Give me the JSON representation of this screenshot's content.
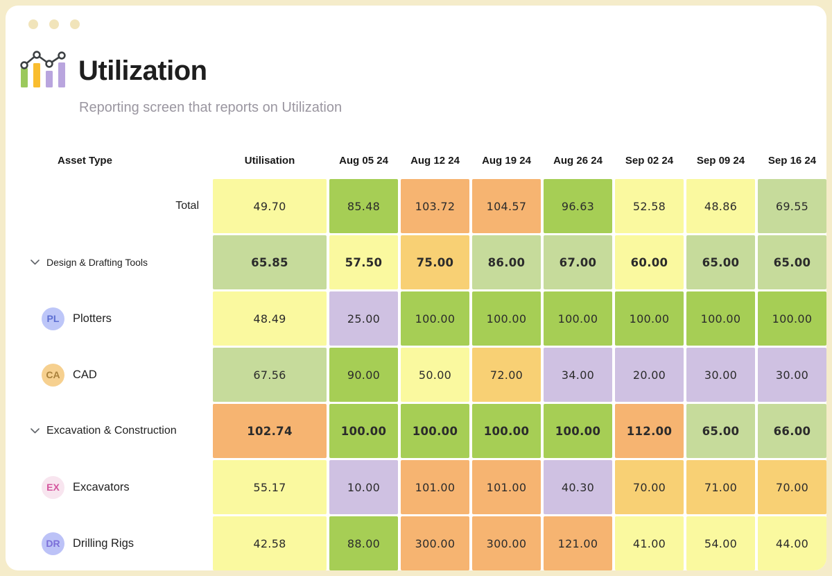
{
  "header": {
    "title": "Utilization",
    "subtitle": "Reporting screen that reports on Utilization"
  },
  "table": {
    "asset_type_header": "Asset Type",
    "columns": [
      "Utilisation",
      "Aug 05 24",
      "Aug 12 24",
      "Aug 19 24",
      "Aug 26 24",
      "Sep 02 24",
      "Sep 09 24",
      "Sep 16 24"
    ],
    "rows": [
      {
        "label": "Total",
        "type": "total",
        "values": [
          "49.70",
          "85.48",
          "103.72",
          "104.57",
          "96.63",
          "52.58",
          "48.86",
          "69.55"
        ],
        "cell_colors": [
          "paleYellow",
          "green",
          "orange",
          "orange",
          "green",
          "paleYellow",
          "paleYellow",
          "lightGreen"
        ]
      },
      {
        "label": "Design & Drafting Tools",
        "type": "group",
        "label_size": "sm",
        "values": [
          "65.85",
          "57.50",
          "75.00",
          "86.00",
          "67.00",
          "60.00",
          "65.00",
          "65.00"
        ],
        "cell_colors": [
          "lightGreen",
          "paleYellow",
          "gold",
          "lightGreen",
          "lightGreen",
          "paleYellow",
          "lightGreen",
          "lightGreen"
        ]
      },
      {
        "label": "Plotters",
        "type": "child",
        "avatar": "PL",
        "avatar_bg": "#bdc6f8",
        "avatar_fg": "#5d6fd2",
        "values": [
          "48.49",
          "25.00",
          "100.00",
          "100.00",
          "100.00",
          "100.00",
          "100.00",
          "100.00"
        ],
        "cell_colors": [
          "paleYellow",
          "purple",
          "green",
          "green",
          "green",
          "green",
          "green",
          "green"
        ]
      },
      {
        "label": "CAD",
        "type": "child",
        "avatar": "CA",
        "avatar_bg": "#f6d08f",
        "avatar_fg": "#a9813c",
        "values": [
          "67.56",
          "90.00",
          "50.00",
          "72.00",
          "34.00",
          "20.00",
          "30.00",
          "30.00"
        ],
        "cell_colors": [
          "lightGreen",
          "green",
          "paleYellow",
          "gold",
          "purple",
          "purple",
          "purple",
          "purple"
        ]
      },
      {
        "label": "Excavation & Construction",
        "type": "group",
        "label_size": "md",
        "values": [
          "102.74",
          "100.00",
          "100.00",
          "100.00",
          "100.00",
          "112.00",
          "65.00",
          "66.00"
        ],
        "cell_colors": [
          "orange",
          "green",
          "green",
          "green",
          "green",
          "orange",
          "lightGreen",
          "lightGreen"
        ]
      },
      {
        "label": "Excavators",
        "type": "child",
        "avatar": "EX",
        "avatar_bg": "#f8e5ef",
        "avatar_fg": "#d4559e",
        "values": [
          "55.17",
          "10.00",
          "101.00",
          "101.00",
          "40.30",
          "70.00",
          "71.00",
          "70.00"
        ],
        "cell_colors": [
          "paleYellow",
          "purple",
          "orange",
          "orange",
          "purple",
          "gold",
          "gold",
          "gold"
        ]
      },
      {
        "label": "Drilling Rigs",
        "type": "child",
        "avatar": "DR",
        "avatar_bg": "#bcc2f7",
        "avatar_fg": "#7a6ed8",
        "values": [
          "42.58",
          "88.00",
          "300.00",
          "300.00",
          "121.00",
          "41.00",
          "54.00",
          "44.00"
        ],
        "cell_colors": [
          "paleYellow",
          "green",
          "orange",
          "orange",
          "orange",
          "paleYellow",
          "paleYellow",
          "paleYellow"
        ]
      }
    ]
  },
  "palette": {
    "paleYellow": "#faf99f",
    "green": "#a6ce55",
    "lightGreen": "#c6db9b",
    "orange": "#f6b471",
    "gold": "#f8d074",
    "purple": "#cfc1e2",
    "frame": "#f5ecca",
    "window_dot": "#f1e4ba"
  },
  "logo_colors": {
    "bar_green": "#9bc95c",
    "bar_yellow": "#f9bd2f",
    "bar_purple": "#b9a5de",
    "line": "#3c4043"
  }
}
